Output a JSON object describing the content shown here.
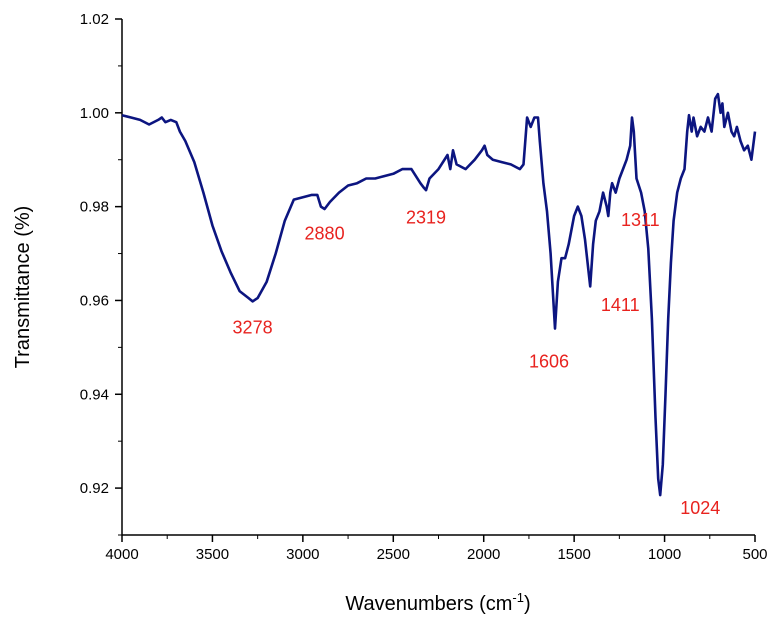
{
  "chart_data": {
    "type": "line",
    "xlabel": "Wavenumbers (cm",
    "xlabel_superscript": "-1",
    "xlabel_suffix": ")",
    "ylabel": "Transmittance (%)",
    "xlim": [
      4000,
      500
    ],
    "ylim": [
      0.91,
      1.02
    ],
    "x_ticks": [
      "4000",
      "3500",
      "3000",
      "2500",
      "2000",
      "1500",
      "1000",
      "500"
    ],
    "y_ticks": [
      "0.92",
      "0.94",
      "0.96",
      "0.98",
      "1.00",
      "1.02"
    ],
    "grid": false,
    "line_color": "#0c1580",
    "annotation_color": "#e8231f",
    "annotations": [
      {
        "text": "3278",
        "x": 3278,
        "y": 0.9585
      },
      {
        "text": "2880",
        "x": 2880,
        "y": 0.9785
      },
      {
        "text": "2319",
        "x": 2319,
        "y": 0.9815
      },
      {
        "text": "1606",
        "x": 1606,
        "y": 0.9525
      },
      {
        "text": "1411",
        "x": 1411,
        "y": 0.962
      },
      {
        "text": "1311",
        "x": 1311,
        "y": 0.9765
      },
      {
        "text": "1024",
        "x": 1024,
        "y": 0.9175
      }
    ],
    "series": [
      {
        "values": [
          [
            4000,
            0.9995
          ],
          [
            3950,
            0.999
          ],
          [
            3900,
            0.9985
          ],
          [
            3850,
            0.9975
          ],
          [
            3800,
            0.9985
          ],
          [
            3780,
            0.999
          ],
          [
            3760,
            0.998
          ],
          [
            3730,
            0.9985
          ],
          [
            3700,
            0.998
          ],
          [
            3680,
            0.996
          ],
          [
            3650,
            0.994
          ],
          [
            3600,
            0.9895
          ],
          [
            3550,
            0.983
          ],
          [
            3500,
            0.976
          ],
          [
            3450,
            0.9705
          ],
          [
            3400,
            0.966
          ],
          [
            3350,
            0.962
          ],
          [
            3300,
            0.9605
          ],
          [
            3278,
            0.9598
          ],
          [
            3250,
            0.9605
          ],
          [
            3200,
            0.964
          ],
          [
            3150,
            0.97
          ],
          [
            3100,
            0.977
          ],
          [
            3050,
            0.9815
          ],
          [
            3000,
            0.982
          ],
          [
            2950,
            0.9825
          ],
          [
            2920,
            0.9825
          ],
          [
            2900,
            0.98
          ],
          [
            2880,
            0.9795
          ],
          [
            2850,
            0.981
          ],
          [
            2800,
            0.983
          ],
          [
            2750,
            0.9845
          ],
          [
            2700,
            0.985
          ],
          [
            2650,
            0.986
          ],
          [
            2600,
            0.986
          ],
          [
            2550,
            0.9865
          ],
          [
            2500,
            0.987
          ],
          [
            2450,
            0.988
          ],
          [
            2400,
            0.988
          ],
          [
            2350,
            0.985
          ],
          [
            2330,
            0.984
          ],
          [
            2319,
            0.9835
          ],
          [
            2300,
            0.986
          ],
          [
            2250,
            0.988
          ],
          [
            2200,
            0.991
          ],
          [
            2185,
            0.988
          ],
          [
            2170,
            0.992
          ],
          [
            2150,
            0.989
          ],
          [
            2100,
            0.988
          ],
          [
            2050,
            0.99
          ],
          [
            2010,
            0.992
          ],
          [
            1995,
            0.993
          ],
          [
            1980,
            0.991
          ],
          [
            1950,
            0.99
          ],
          [
            1900,
            0.9895
          ],
          [
            1850,
            0.989
          ],
          [
            1800,
            0.988
          ],
          [
            1780,
            0.989
          ],
          [
            1760,
            0.999
          ],
          [
            1740,
            0.997
          ],
          [
            1720,
            0.999
          ],
          [
            1700,
            0.999
          ],
          [
            1690,
            0.994
          ],
          [
            1670,
            0.985
          ],
          [
            1650,
            0.979
          ],
          [
            1630,
            0.97
          ],
          [
            1606,
            0.954
          ],
          [
            1590,
            0.964
          ],
          [
            1570,
            0.969
          ],
          [
            1550,
            0.969
          ],
          [
            1530,
            0.972
          ],
          [
            1500,
            0.978
          ],
          [
            1480,
            0.98
          ],
          [
            1460,
            0.978
          ],
          [
            1440,
            0.973
          ],
          [
            1411,
            0.963
          ],
          [
            1395,
            0.972
          ],
          [
            1380,
            0.977
          ],
          [
            1360,
            0.979
          ],
          [
            1340,
            0.983
          ],
          [
            1320,
            0.98
          ],
          [
            1311,
            0.978
          ],
          [
            1300,
            0.983
          ],
          [
            1290,
            0.985
          ],
          [
            1270,
            0.983
          ],
          [
            1250,
            0.986
          ],
          [
            1230,
            0.988
          ],
          [
            1210,
            0.99
          ],
          [
            1190,
            0.993
          ],
          [
            1180,
            0.999
          ],
          [
            1170,
            0.996
          ],
          [
            1155,
            0.986
          ],
          [
            1130,
            0.983
          ],
          [
            1110,
            0.979
          ],
          [
            1090,
            0.971
          ],
          [
            1070,
            0.956
          ],
          [
            1050,
            0.935
          ],
          [
            1035,
            0.922
          ],
          [
            1024,
            0.9185
          ],
          [
            1010,
            0.925
          ],
          [
            995,
            0.94
          ],
          [
            980,
            0.956
          ],
          [
            965,
            0.968
          ],
          [
            950,
            0.977
          ],
          [
            930,
            0.983
          ],
          [
            910,
            0.986
          ],
          [
            890,
            0.988
          ],
          [
            875,
            0.996
          ],
          [
            865,
            0.9995
          ],
          [
            850,
            0.996
          ],
          [
            840,
            0.999
          ],
          [
            820,
            0.995
          ],
          [
            800,
            0.997
          ],
          [
            780,
            0.996
          ],
          [
            760,
            0.999
          ],
          [
            740,
            0.996
          ],
          [
            720,
            1.003
          ],
          [
            705,
            1.004
          ],
          [
            690,
            1.0
          ],
          [
            680,
            1.002
          ],
          [
            670,
            0.997
          ],
          [
            650,
            1.0
          ],
          [
            630,
            0.996
          ],
          [
            615,
            0.995
          ],
          [
            600,
            0.997
          ],
          [
            580,
            0.994
          ],
          [
            560,
            0.992
          ],
          [
            540,
            0.993
          ],
          [
            520,
            0.99
          ],
          [
            510,
            0.993
          ],
          [
            500,
            0.996
          ]
        ]
      }
    ]
  }
}
